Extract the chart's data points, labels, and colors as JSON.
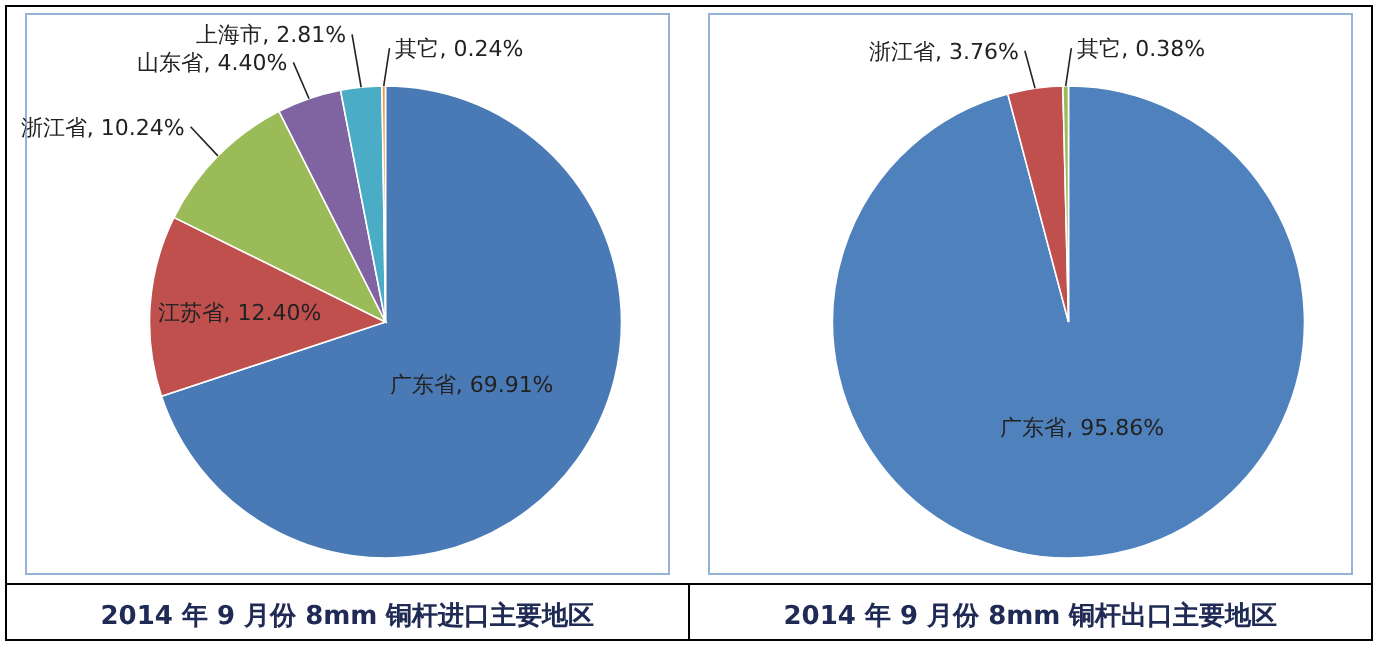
{
  "chart_data": [
    {
      "type": "pie",
      "title": "2014 年 9 月份 8mm 铜杆进口主要地区",
      "categories": [
        "广东省",
        "江苏省",
        "浙江省",
        "山东省",
        "上海市",
        "其它"
      ],
      "values": [
        69.91,
        12.4,
        10.24,
        4.4,
        2.81,
        0.24
      ],
      "colors": [
        "#4a7ab5",
        "#c0504d",
        "#9bbb59",
        "#8064a2",
        "#4bacc6",
        "#f79646"
      ],
      "value_labels": [
        ", 69.91%",
        ", 12.40%",
        ", 10.24%",
        ", 4.40%",
        ", 2.81%",
        ", 0.24%"
      ]
    },
    {
      "type": "pie",
      "title": "2014 年 9 月份 8mm 铜杆出口主要地区",
      "categories": [
        "广东省",
        "浙江省",
        "其它"
      ],
      "values": [
        95.86,
        3.76,
        0.38
      ],
      "colors": [
        "#4f81bd",
        "#c0504d",
        "#9bbb59"
      ],
      "value_labels": [
        ", 95.86%",
        ", 3.76%",
        ", 0.38%"
      ]
    }
  ]
}
